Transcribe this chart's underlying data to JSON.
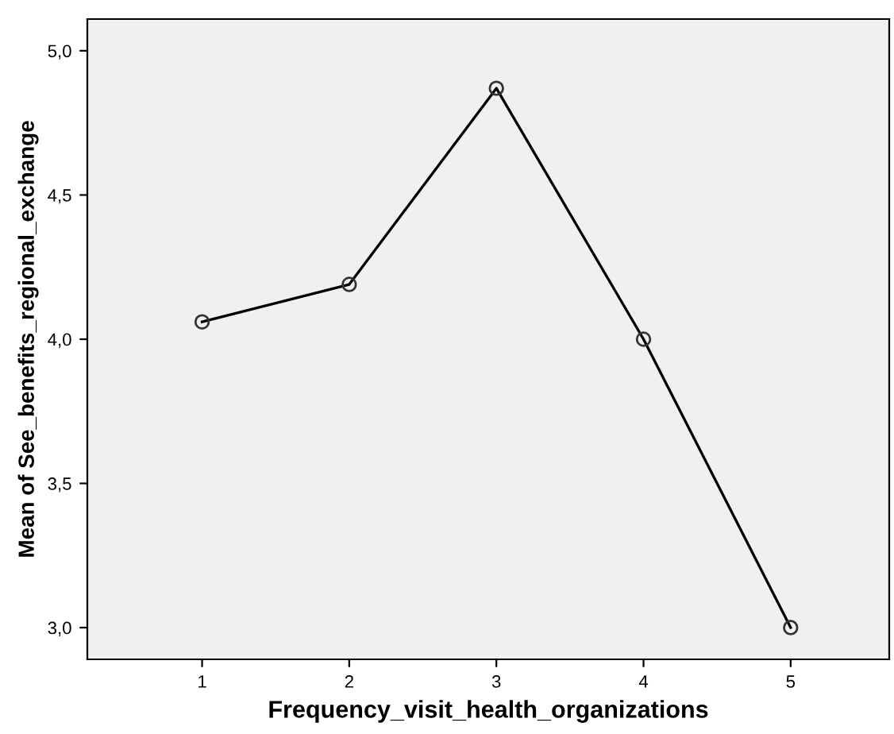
{
  "chart_data": {
    "type": "line",
    "xlabel": "Frequency_visit_health_organizations",
    "ylabel": "Mean of See_benefits_regional_exchange",
    "categories": [
      "1",
      "2",
      "3",
      "4",
      "5"
    ],
    "series": [
      {
        "color": "#000000",
        "values": [
          4.06,
          4.19,
          4.87,
          4.0,
          3.0
        ]
      }
    ],
    "ylim": [
      2.89,
      5.11
    ],
    "yticks": [
      {
        "value": 3.0,
        "label": "3,0"
      },
      {
        "value": 3.5,
        "label": "3,5"
      },
      {
        "value": 4.0,
        "label": "4,0"
      },
      {
        "value": 4.5,
        "label": "4,5"
      },
      {
        "value": 5.0,
        "label": "5,0"
      }
    ],
    "marker": "circle",
    "line_style": "solid",
    "grid": false,
    "legend": false
  }
}
